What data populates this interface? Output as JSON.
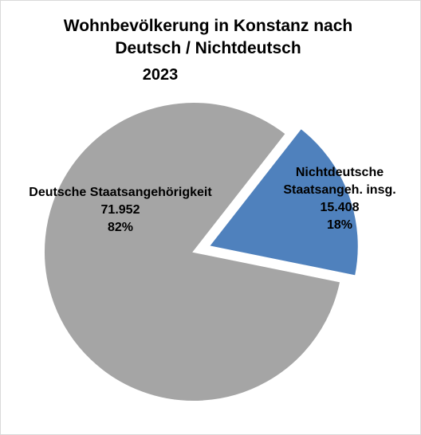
{
  "chart_data": {
    "type": "pie",
    "title": "Wohnbevölkerung in Konstanz nach Deutsch / Nichtdeutsch",
    "subtitle": "2023",
    "categories": [
      "Deutsche Staatsangehörigkeit",
      "Nichtdeutsche Staatsangeh. insg."
    ],
    "values": [
      71952,
      15408
    ],
    "value_labels": [
      "71.952",
      "15.408"
    ],
    "percents": [
      82,
      18
    ],
    "percent_labels": [
      "82%",
      "18%"
    ],
    "colors": [
      "#a5a5a5",
      "#4f81bd"
    ]
  }
}
